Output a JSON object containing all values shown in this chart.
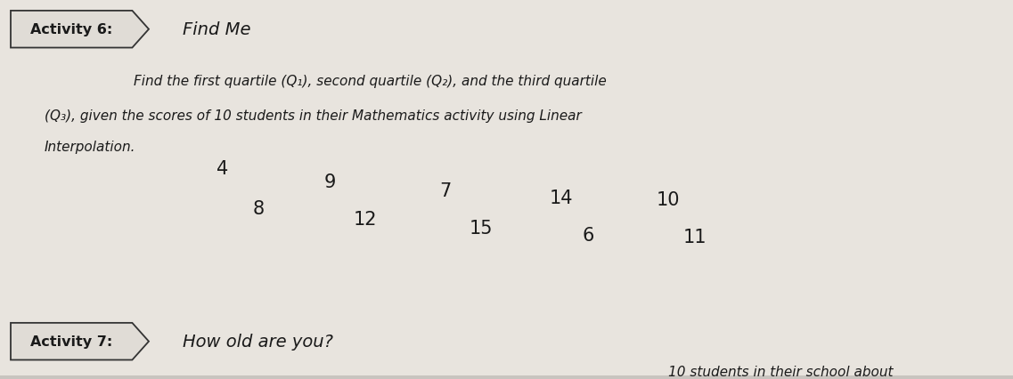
{
  "bg_color": "#c8c4bf",
  "paper_color": "#e8e4de",
  "activity6_label": "Activity 6:",
  "activity6_title": "Find Me",
  "box_color": "#e0dcd6",
  "box_edge": "#333333",
  "paragraph_line1": "Find the first quartile (Q₁), second quartile (Q₂), and the third quartile",
  "paragraph_line2": "(Q₃), given the scores of 10 students in their Mathematics activity using Linear",
  "paragraph_line3": "Interpolation.",
  "scores_row1": [
    "4",
    "9",
    "7",
    "14",
    "10"
  ],
  "scores_row2": [
    "8",
    "12",
    "15",
    "6",
    "11"
  ],
  "activity7_label": "Activity 7:",
  "activity7_title": "How old are you?",
  "activity7_extra": "10 students in their school about",
  "text_color": "#1a1a1a",
  "font_size_activity": 11.5,
  "font_size_body": 11,
  "font_size_scores": 15,
  "font_size_title": 14
}
